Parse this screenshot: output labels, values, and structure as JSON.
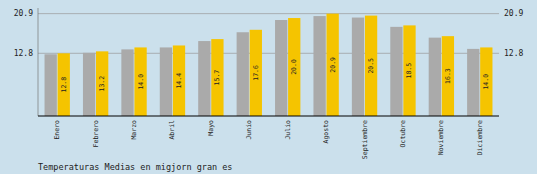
{
  "chart_data": {
    "type": "bar",
    "title": "Temperaturas Medias en migjorn gran es",
    "categories": [
      "Enero",
      "Febrero",
      "Marzo",
      "Abril",
      "Mayo",
      "Junio",
      "Julio",
      "Agosto",
      "Septiembre",
      "Octubre",
      "Noviembre",
      "Diciembre"
    ],
    "series": [
      {
        "color": "#AAAAAA",
        "values": [
          12.6,
          12.9,
          13.6,
          14.0,
          15.3,
          17.1,
          19.6,
          20.4,
          20.1,
          18.2,
          16.0,
          13.7
        ]
      },
      {
        "color": "#F5C400",
        "data_labels": true,
        "values": [
          12.8,
          13.2,
          14.0,
          14.4,
          15.7,
          17.6,
          20.0,
          20.9,
          20.5,
          18.5,
          16.3,
          14.0
        ]
      }
    ],
    "ylim": [
      0,
      22.0495
    ],
    "yticks": [
      12.8,
      20.9
    ],
    "grid": true
  }
}
